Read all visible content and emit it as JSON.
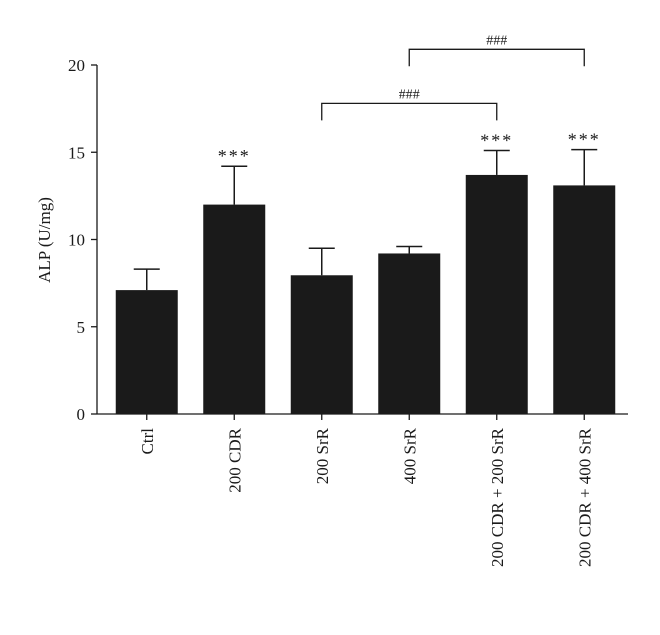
{
  "chart_data": {
    "type": "bar",
    "categories": [
      "Ctrl",
      "200 CDR",
      "200 SrR",
      "400 SrR",
      "200 CDR + 200 SrR",
      "200 CDR + 400 SrR"
    ],
    "values": [
      7.1,
      12.0,
      7.95,
      9.2,
      13.7,
      13.1
    ],
    "errors": [
      1.2,
      2.2,
      1.55,
      0.4,
      1.4,
      2.05
    ],
    "title": "",
    "xlabel": "",
    "ylabel": "ALP (U/mg)",
    "ylim": [
      0,
      20
    ],
    "yticks": [
      "0",
      "5",
      "10",
      "15",
      "20"
    ],
    "bar_color": "#1a1a1a",
    "significance": [
      {
        "category": "200 CDR",
        "label": "***"
      },
      {
        "category": "200 CDR + 200 SrR",
        "label": "***"
      },
      {
        "category": "200 CDR + 400 SrR",
        "label": "***"
      }
    ],
    "brackets": [
      {
        "from": "200 SrR",
        "to": "200 CDR + 200 SrR",
        "label": "###",
        "y": 17.8
      },
      {
        "from": "400 SrR",
        "to": "200 CDR + 400 SrR",
        "label": "###",
        "y": 20.9
      }
    ],
    "grid": false,
    "legend": "none"
  }
}
